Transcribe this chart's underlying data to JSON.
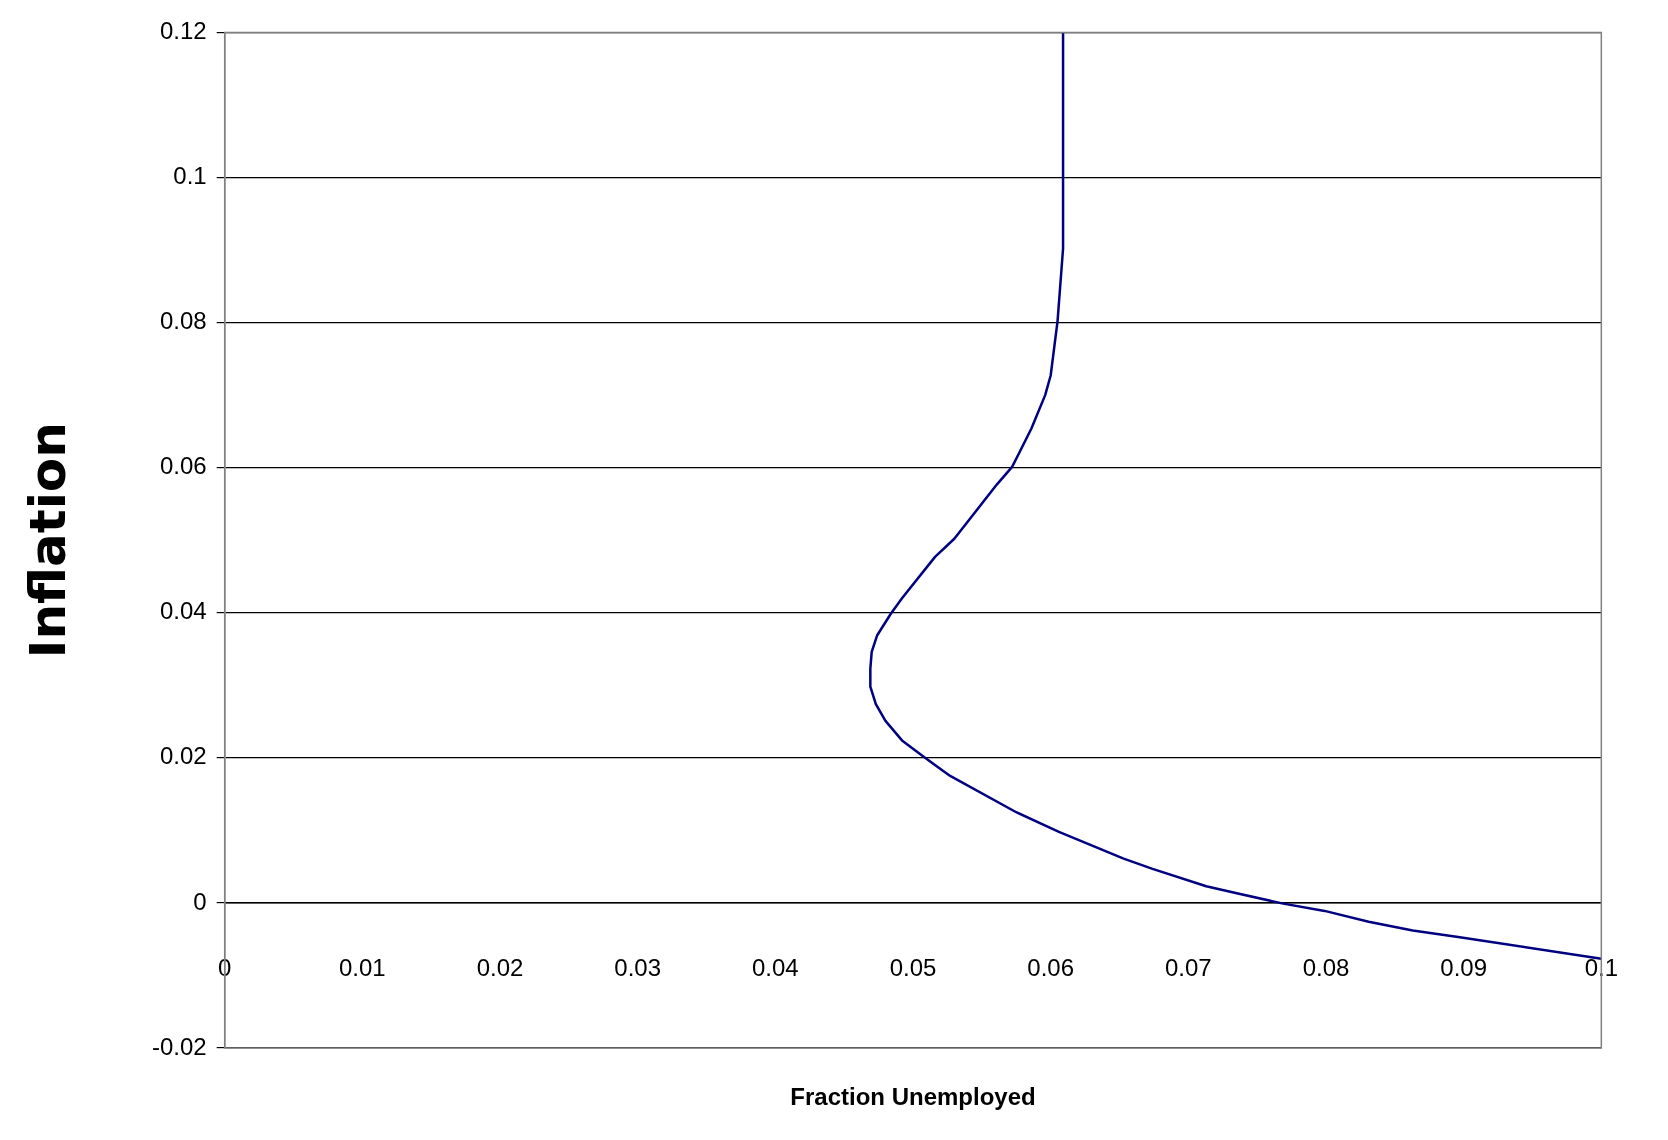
{
  "chart_data": {
    "type": "line",
    "xlabel": "Fraction Unemployed",
    "ylabel": "Inflation",
    "series": [
      {
        "color": "#000080",
        "x": [
          0.0609,
          0.0609,
          0.0605,
          0.06,
          0.0596,
          0.0586,
          0.0572,
          0.0561,
          0.053,
          0.0516,
          0.0492,
          0.0484,
          0.0474,
          0.047,
          0.0469,
          0.0469,
          0.0473,
          0.048,
          0.0492,
          0.0508,
          0.0527,
          0.0575,
          0.0606,
          0.0653,
          0.0674,
          0.0713,
          0.0736,
          0.0769,
          0.0799,
          0.0831,
          0.0863,
          0.0896,
          0.1
        ],
        "values": [
          0.12,
          0.0902,
          0.0802,
          0.0727,
          0.07,
          0.0654,
          0.0601,
          0.0577,
          0.0502,
          0.0477,
          0.042,
          0.0399,
          0.0369,
          0.0346,
          0.0323,
          0.0298,
          0.0274,
          0.0251,
          0.0224,
          0.0201,
          0.0175,
          0.0125,
          0.0098,
          0.0061,
          0.0047,
          0.0023,
          0.0013,
          -0.0001,
          -0.0011,
          -0.0026,
          -0.0038,
          -0.0047,
          -0.0077
        ]
      }
    ],
    "xlim": [
      0,
      0.1
    ],
    "xticks": [
      0,
      0.01,
      0.02,
      0.03,
      0.04,
      0.05,
      0.06,
      0.07,
      0.08,
      0.09,
      0.1
    ],
    "ylim": [
      -0.02,
      0.12
    ],
    "yticks": [
      -0.02,
      0,
      0.02,
      0.04,
      0.06,
      0.08,
      0.1,
      0.12
    ],
    "grid": "y",
    "legend": false,
    "marker": "none",
    "line_style": "solid"
  }
}
